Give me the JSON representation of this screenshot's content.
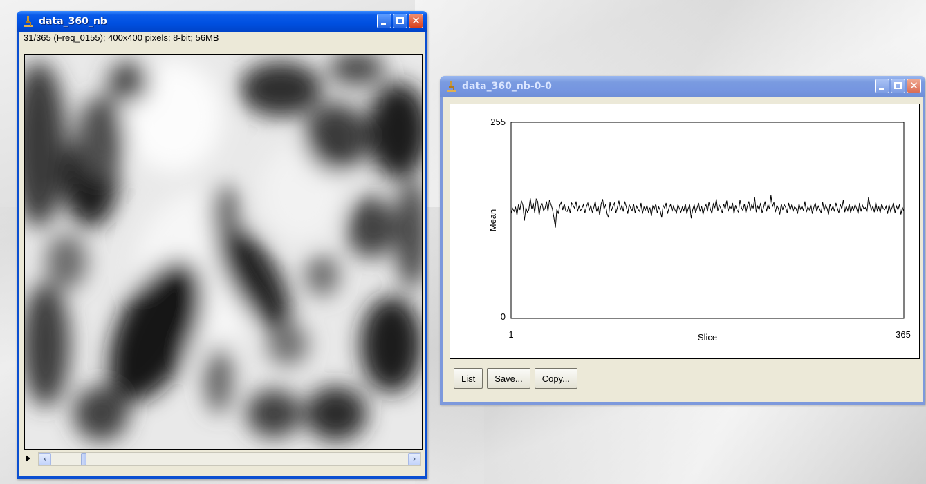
{
  "image_window": {
    "title": "data_360_nb",
    "info": "31/365 (Freq_0155); 400x400 pixels; 8-bit; 56MB",
    "slice_position": 0.085
  },
  "plot_window": {
    "title": "data_360_nb-0-0",
    "buttons": {
      "list": "List",
      "save": "Save...",
      "copy": "Copy..."
    },
    "chart_data": {
      "type": "line",
      "xlabel": "Slice",
      "ylabel": "Mean",
      "xlim": [
        1,
        365
      ],
      "ylim": [
        0,
        255
      ],
      "x_tick_labels": [
        "1",
        "365"
      ],
      "y_tick_labels": [
        "255",
        "0"
      ],
      "grid": false,
      "series": [
        {
          "x_range": [
            1,
            365
          ],
          "values": [
            136,
            143,
            139,
            145,
            134,
            148,
            141,
            153,
            147,
            127,
            144,
            138,
            141,
            156,
            142,
            150,
            137,
            155,
            152,
            134,
            146,
            149,
            140,
            143,
            152,
            139,
            154,
            148,
            142,
            131,
            118,
            142,
            136,
            147,
            151,
            141,
            149,
            140,
            139,
            145,
            137,
            150,
            147,
            143,
            152,
            139,
            146,
            140,
            143,
            148,
            137,
            145,
            150,
            141,
            147,
            138,
            144,
            152,
            139,
            146,
            134,
            149,
            155,
            142,
            148,
            136,
            131,
            151,
            140,
            146,
            150,
            137,
            144,
            153,
            141,
            147,
            139,
            152,
            145,
            136,
            148,
            143,
            140,
            149,
            137,
            146,
            142,
            139,
            150,
            136,
            145,
            141,
            147,
            138,
            144,
            133,
            146,
            142,
            149,
            137,
            145,
            140,
            131,
            147,
            143,
            150,
            136,
            144,
            148,
            139,
            146,
            141,
            137,
            148,
            143,
            138,
            145,
            140,
            149,
            136,
            143,
            147,
            130,
            141,
            148,
            137,
            144,
            150,
            139,
            146,
            135,
            143,
            148,
            139,
            151,
            142,
            136,
            149,
            144,
            155,
            140,
            147,
            143,
            137,
            149,
            142,
            153,
            139,
            146,
            143,
            150,
            136,
            147,
            141,
            138,
            154,
            144,
            140,
            149,
            137,
            146,
            152,
            140,
            148,
            143,
            157,
            138,
            146,
            141,
            150,
            137,
            144,
            152,
            139,
            148,
            142,
            160,
            145,
            151,
            138,
            147,
            143,
            135,
            149,
            141,
            148,
            144,
            137,
            150,
            141,
            147,
            139,
            145,
            143,
            136,
            149,
            142,
            146,
            140,
            152,
            138,
            145,
            141,
            148,
            136,
            144,
            150,
            139,
            146,
            142,
            137,
            151,
            140,
            147,
            143,
            135,
            149,
            141,
            146,
            139,
            150,
            143,
            137,
            148,
            142,
            154,
            138,
            146,
            140,
            149,
            137,
            145,
            141,
            148,
            143,
            136,
            150,
            139,
            147,
            142,
            144,
            138,
            157,
            148,
            141,
            146,
            138,
            151,
            140,
            145,
            137,
            149,
            143,
            141,
            146,
            136,
            148,
            139,
            144,
            150,
            137,
            146,
            141,
            148,
            135,
            144,
            139
          ]
        }
      ]
    }
  }
}
